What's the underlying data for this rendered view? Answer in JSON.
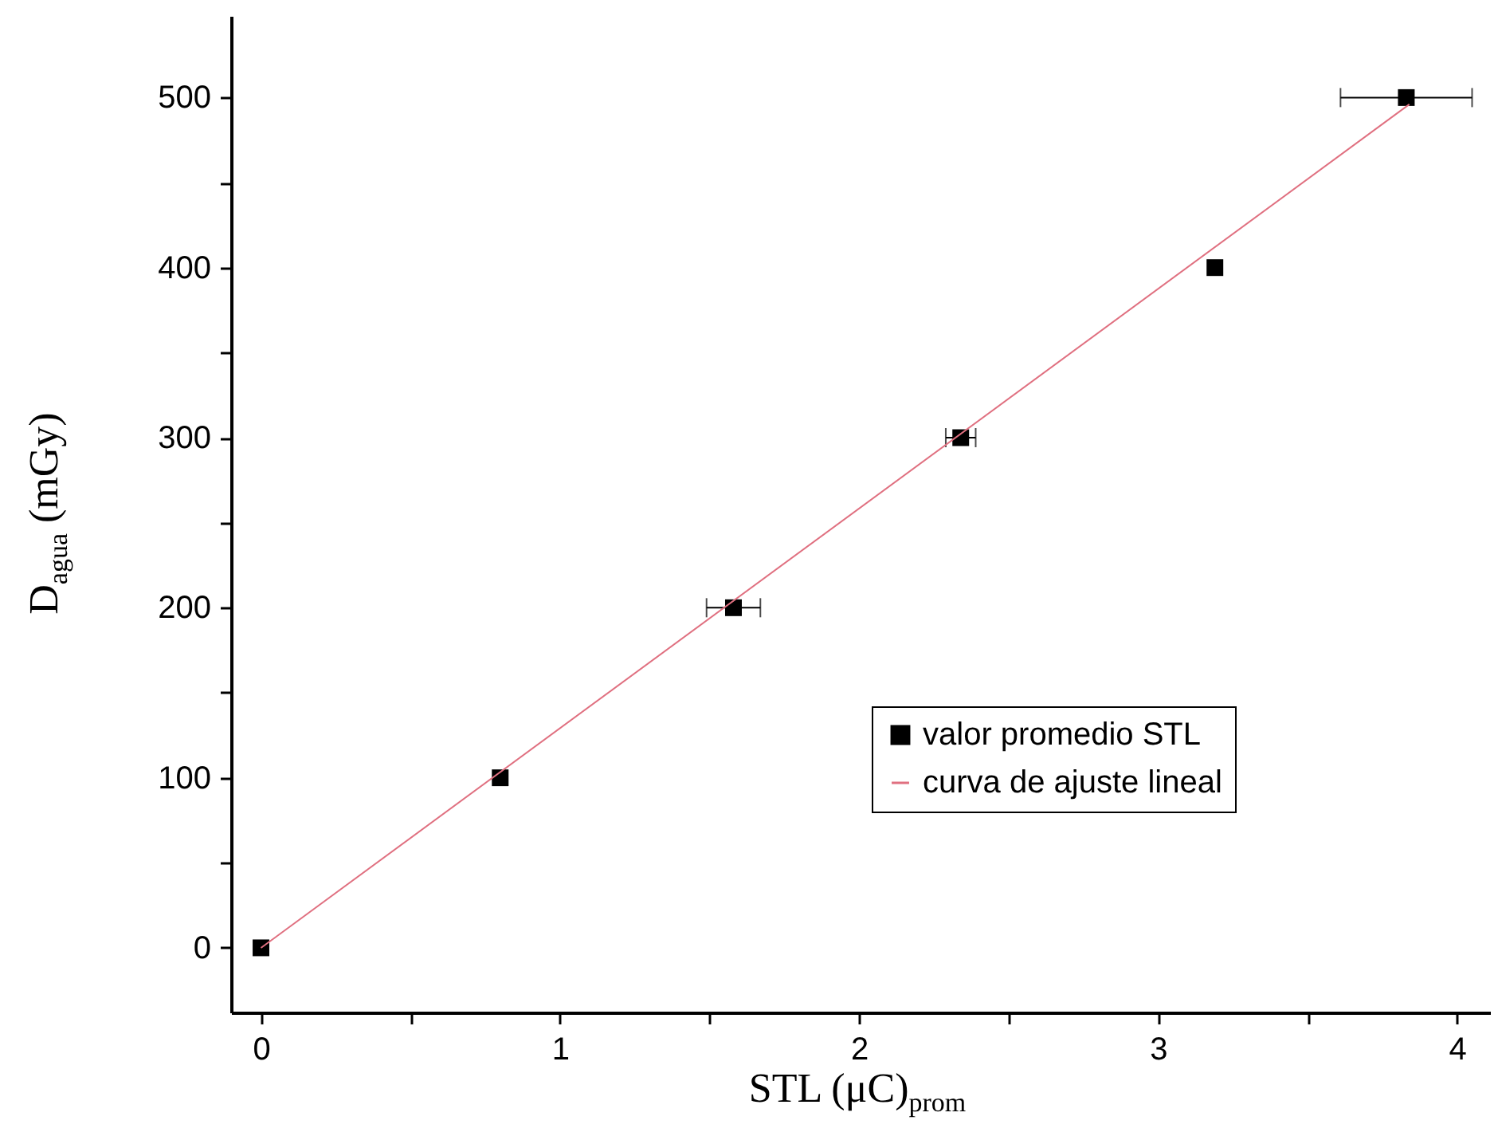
{
  "chart_data": {
    "type": "scatter",
    "xlabel": "STL (μC)$_{prom}$",
    "ylabel": "D$_{agua}$ (mGy)",
    "xlim": [
      -0.1,
      4.11
    ],
    "ylim": [
      -38,
      548
    ],
    "xticks": [
      0,
      {
        "value": 0.5,
        "label": null
      },
      1,
      {
        "value": 1.5,
        "label": null
      },
      2,
      {
        "value": 2.5,
        "label": null
      },
      3,
      {
        "value": 3.5,
        "label": null
      },
      4
    ],
    "yticks": [
      0,
      {
        "value": 50,
        "label": null
      },
      100,
      {
        "value": 150,
        "label": null
      },
      200,
      {
        "value": 250,
        "label": null
      },
      300,
      {
        "value": 350,
        "label": null
      },
      400,
      {
        "value": 450,
        "label": null
      },
      500
    ],
    "grid": false,
    "legend": "bottom right",
    "series": [
      {
        "name": "valor promedio STL",
        "marker": "square",
        "color": "#000000",
        "x": [
          0,
          0.8,
          1.58,
          2.34,
          3.19,
          3.83
        ],
        "values": [
          0,
          100,
          200,
          300,
          400,
          500
        ],
        "xerrors": [
          null,
          null,
          0.09,
          0.05,
          null,
          0.22
        ]
      },
      {
        "name": "curva de ajuste lineal",
        "type": "line",
        "color": "#e07080",
        "x": [
          0,
          3.84
        ],
        "values": [
          0,
          496
        ]
      }
    ]
  }
}
